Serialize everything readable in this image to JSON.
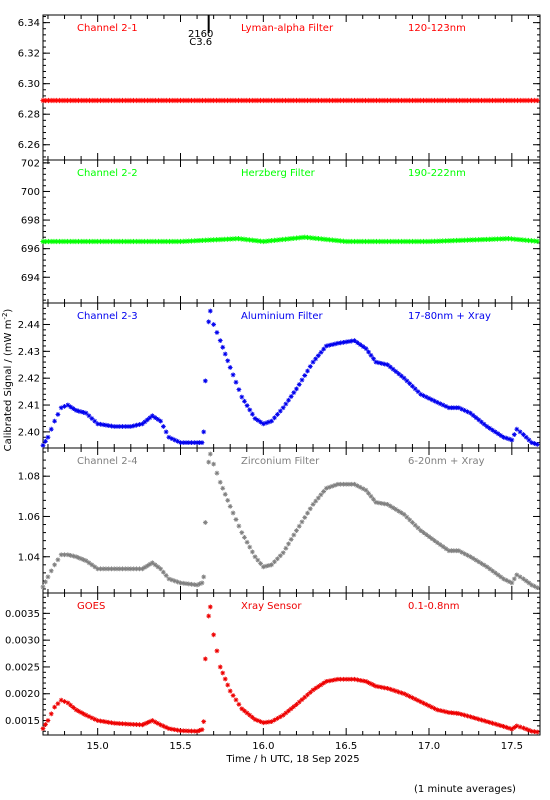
{
  "colors": {
    "ch21": "#ff0000",
    "ch22": "#00ff00",
    "ch23": "#0000ee",
    "ch24": "#808080",
    "goes": "#ee0000",
    "axes": "#000000"
  },
  "footer_note": "(1 minute averages)",
  "chart_data": {
    "type": "scatter",
    "x_axis": {
      "label": "Time / h UTC, 18 Sep 2025",
      "range": [
        14.67,
        17.67
      ],
      "ticks": [
        "15.0",
        "15.5",
        "16.0",
        "16.5",
        "17.0",
        "17.5"
      ],
      "tick_values": [
        15.0,
        15.5,
        16.0,
        16.5,
        17.0,
        17.5
      ],
      "minor_step": 0.1
    },
    "y_axis_label": "Calibrated Signal / (mW m^-2)",
    "flare_marker": {
      "x": 15.67,
      "labels": [
        "2160",
        "C3.6"
      ]
    },
    "panels": [
      {
        "id": "ch21",
        "channel": "Channel 2-1",
        "filter": "Lyman-alpha Filter",
        "band": "120-123nm",
        "ylim": [
          6.25,
          6.345
        ],
        "ticks": [
          "6.26",
          "6.28",
          "6.30",
          "6.32",
          "6.34"
        ],
        "tick_values": [
          6.26,
          6.28,
          6.3,
          6.32,
          6.34
        ],
        "points": [
          [
            14.67,
            6.289
          ],
          [
            15.0,
            6.289
          ],
          [
            15.5,
            6.289
          ],
          [
            16.0,
            6.289
          ],
          [
            16.5,
            6.289
          ],
          [
            17.0,
            6.289
          ],
          [
            17.5,
            6.289
          ],
          [
            17.67,
            6.289
          ]
        ]
      },
      {
        "id": "ch22",
        "channel": "Channel 2-2",
        "filter": "Herzberg Filter",
        "band": "190-222nm",
        "ylim": [
          692.2,
          702.2
        ],
        "ticks": [
          "694",
          "696",
          "698",
          "700",
          "702"
        ],
        "tick_values": [
          694,
          696,
          698,
          700,
          702
        ],
        "points": [
          [
            14.67,
            696.5
          ],
          [
            15.0,
            696.5
          ],
          [
            15.5,
            696.5
          ],
          [
            15.85,
            696.7
          ],
          [
            16.0,
            696.5
          ],
          [
            16.25,
            696.8
          ],
          [
            16.5,
            696.5
          ],
          [
            17.0,
            696.5
          ],
          [
            17.48,
            696.7
          ],
          [
            17.67,
            696.5
          ]
        ]
      },
      {
        "id": "ch23",
        "channel": "Channel 2-3",
        "filter": "Aluminium Filter",
        "band": "17-80nm + Xray",
        "ylim": [
          2.394,
          2.448
        ],
        "ticks": [
          "2.40",
          "2.41",
          "2.42",
          "2.43",
          "2.44"
        ],
        "tick_values": [
          2.4,
          2.41,
          2.42,
          2.43,
          2.44
        ],
        "points": [
          [
            14.67,
            2.395
          ],
          [
            14.7,
            2.398
          ],
          [
            14.74,
            2.404
          ],
          [
            14.78,
            2.409
          ],
          [
            14.82,
            2.41
          ],
          [
            14.87,
            2.408
          ],
          [
            14.93,
            2.407
          ],
          [
            15.0,
            2.403
          ],
          [
            15.1,
            2.402
          ],
          [
            15.2,
            2.402
          ],
          [
            15.27,
            2.403
          ],
          [
            15.33,
            2.406
          ],
          [
            15.38,
            2.404
          ],
          [
            15.43,
            2.398
          ],
          [
            15.5,
            2.396
          ],
          [
            15.6,
            2.396
          ],
          [
            15.63,
            2.396
          ],
          [
            15.64,
            2.4
          ],
          [
            15.65,
            2.419
          ],
          [
            15.67,
            2.441
          ],
          [
            15.68,
            2.445
          ],
          [
            15.7,
            2.44
          ],
          [
            15.74,
            2.434
          ],
          [
            15.8,
            2.424
          ],
          [
            15.87,
            2.413
          ],
          [
            15.95,
            2.405
          ],
          [
            16.0,
            2.403
          ],
          [
            16.05,
            2.404
          ],
          [
            16.12,
            2.409
          ],
          [
            16.2,
            2.416
          ],
          [
            16.3,
            2.426
          ],
          [
            16.38,
            2.432
          ],
          [
            16.45,
            2.433
          ],
          [
            16.55,
            2.434
          ],
          [
            16.62,
            2.431
          ],
          [
            16.68,
            2.426
          ],
          [
            16.75,
            2.425
          ],
          [
            16.85,
            2.42
          ],
          [
            16.95,
            2.414
          ],
          [
            17.05,
            2.411
          ],
          [
            17.12,
            2.409
          ],
          [
            17.18,
            2.409
          ],
          [
            17.25,
            2.407
          ],
          [
            17.35,
            2.402
          ],
          [
            17.45,
            2.398
          ],
          [
            17.5,
            2.397
          ],
          [
            17.53,
            2.401
          ],
          [
            17.57,
            2.399
          ],
          [
            17.62,
            2.396
          ],
          [
            17.67,
            2.395
          ]
        ]
      },
      {
        "id": "ch24",
        "channel": "Channel 2-4",
        "filter": "Zirconium Filter",
        "band": "6-20nm + Xray",
        "ylim": [
          1.022,
          1.094
        ],
        "ticks": [
          "1.04",
          "1.06",
          "1.08"
        ],
        "tick_values": [
          1.04,
          1.06,
          1.08
        ],
        "points": [
          [
            14.67,
            1.025
          ],
          [
            14.7,
            1.03
          ],
          [
            14.74,
            1.036
          ],
          [
            14.78,
            1.041
          ],
          [
            14.82,
            1.041
          ],
          [
            14.87,
            1.04
          ],
          [
            14.93,
            1.038
          ],
          [
            15.0,
            1.034
          ],
          [
            15.1,
            1.034
          ],
          [
            15.2,
            1.034
          ],
          [
            15.27,
            1.034
          ],
          [
            15.33,
            1.037
          ],
          [
            15.38,
            1.034
          ],
          [
            15.43,
            1.029
          ],
          [
            15.5,
            1.027
          ],
          [
            15.6,
            1.026
          ],
          [
            15.63,
            1.027
          ],
          [
            15.64,
            1.03
          ],
          [
            15.65,
            1.057
          ],
          [
            15.67,
            1.087
          ],
          [
            15.68,
            1.091
          ],
          [
            15.7,
            1.086
          ],
          [
            15.74,
            1.077
          ],
          [
            15.8,
            1.065
          ],
          [
            15.87,
            1.052
          ],
          [
            15.95,
            1.04
          ],
          [
            16.0,
            1.035
          ],
          [
            16.05,
            1.036
          ],
          [
            16.12,
            1.042
          ],
          [
            16.2,
            1.053
          ],
          [
            16.3,
            1.066
          ],
          [
            16.38,
            1.074
          ],
          [
            16.45,
            1.076
          ],
          [
            16.55,
            1.076
          ],
          [
            16.62,
            1.073
          ],
          [
            16.68,
            1.067
          ],
          [
            16.75,
            1.066
          ],
          [
            16.85,
            1.061
          ],
          [
            16.95,
            1.053
          ],
          [
            17.05,
            1.047
          ],
          [
            17.12,
            1.043
          ],
          [
            17.18,
            1.043
          ],
          [
            17.25,
            1.04
          ],
          [
            17.35,
            1.035
          ],
          [
            17.45,
            1.029
          ],
          [
            17.5,
            1.027
          ],
          [
            17.53,
            1.031
          ],
          [
            17.57,
            1.029
          ],
          [
            17.62,
            1.026
          ],
          [
            17.67,
            1.024
          ]
        ]
      },
      {
        "id": "goes",
        "channel": "GOES",
        "filter": "Xray Sensor",
        "band": "0.1-0.8nm",
        "ylim": [
          0.00123,
          0.00388
        ],
        "ticks": [
          "0.0015",
          "0.0020",
          "0.0025",
          "0.0030",
          "0.0035"
        ],
        "tick_values": [
          0.0015,
          0.002,
          0.0025,
          0.003,
          0.0035
        ],
        "points": [
          [
            14.67,
            0.00135
          ],
          [
            14.7,
            0.0015
          ],
          [
            14.74,
            0.00175
          ],
          [
            14.78,
            0.00188
          ],
          [
            14.82,
            0.00183
          ],
          [
            14.87,
            0.0017
          ],
          [
            14.93,
            0.0016
          ],
          [
            15.0,
            0.0015
          ],
          [
            15.1,
            0.00145
          ],
          [
            15.2,
            0.00143
          ],
          [
            15.27,
            0.00142
          ],
          [
            15.33,
            0.0015
          ],
          [
            15.38,
            0.00142
          ],
          [
            15.43,
            0.00135
          ],
          [
            15.5,
            0.00131
          ],
          [
            15.6,
            0.0013
          ],
          [
            15.63,
            0.00133
          ],
          [
            15.64,
            0.00148
          ],
          [
            15.65,
            0.00265
          ],
          [
            15.67,
            0.00345
          ],
          [
            15.68,
            0.00362
          ],
          [
            15.7,
            0.0031
          ],
          [
            15.74,
            0.0025
          ],
          [
            15.8,
            0.00205
          ],
          [
            15.87,
            0.00172
          ],
          [
            15.95,
            0.00152
          ],
          [
            16.0,
            0.00146
          ],
          [
            16.05,
            0.00148
          ],
          [
            16.12,
            0.0016
          ],
          [
            16.2,
            0.0018
          ],
          [
            16.3,
            0.00207
          ],
          [
            16.38,
            0.00223
          ],
          [
            16.45,
            0.00227
          ],
          [
            16.55,
            0.00227
          ],
          [
            16.62,
            0.00223
          ],
          [
            16.68,
            0.00214
          ],
          [
            16.75,
            0.0021
          ],
          [
            16.85,
            0.002
          ],
          [
            16.95,
            0.00185
          ],
          [
            17.05,
            0.0017
          ],
          [
            17.12,
            0.00165
          ],
          [
            17.18,
            0.00163
          ],
          [
            17.25,
            0.00157
          ],
          [
            17.35,
            0.00148
          ],
          [
            17.45,
            0.00139
          ],
          [
            17.5,
            0.00134
          ],
          [
            17.53,
            0.0014
          ],
          [
            17.57,
            0.00136
          ],
          [
            17.62,
            0.0013
          ],
          [
            17.67,
            0.00128
          ]
        ]
      }
    ]
  }
}
